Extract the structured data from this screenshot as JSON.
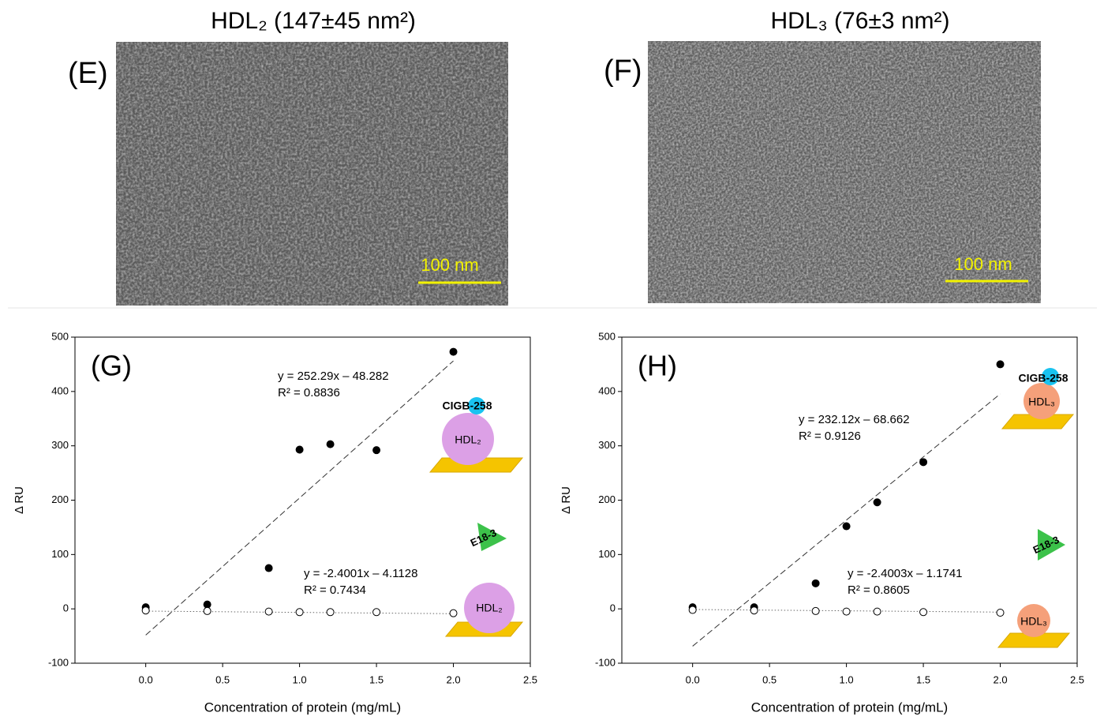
{
  "images": [
    {
      "panel": "(E)",
      "title": "HDL₂ (147±45 nm²)",
      "scale_bar": "100 nm"
    },
    {
      "panel": "(F)",
      "title": "HDL₃ (76±3 nm²)",
      "scale_bar": "100 nm"
    }
  ],
  "diagram_labels": {
    "peptide": "CIGB-258",
    "antibody": "E18-3",
    "particle_g": "HDL₂",
    "particle_h": "HDL₃"
  },
  "chart_data": [
    {
      "type": "scatter",
      "panel": "(G)",
      "xlabel": "Concentration of protein (mg/mL)",
      "ylabel": "Δ RU",
      "xlim": [
        -0.46,
        2.5
      ],
      "ylim": [
        -100,
        500
      ],
      "xticks": [
        {
          "value": 0,
          "label": "0.0"
        },
        0.5,
        {
          "value": 1,
          "label": "1.0"
        },
        1.5,
        {
          "value": 2,
          "label": "2.0"
        },
        2.5
      ],
      "yticks": [
        -100,
        0,
        100,
        200,
        300,
        400,
        500
      ],
      "x": [
        0,
        0.4,
        0.8,
        1.0,
        1.2,
        1.5,
        2.0
      ],
      "series": [
        {
          "color": "#000000",
          "marker": "filled",
          "values": [
            3,
            8,
            75,
            293,
            303,
            292,
            473
          ]
        },
        {
          "color": "#000000",
          "marker": "open",
          "values": [
            -3,
            -4,
            -5,
            -6,
            -6,
            -6,
            -8
          ]
        }
      ],
      "fits": [
        {
          "equation": "y = 252.29x – 48.282",
          "r_squared": "R² = 0.8836",
          "slope": 252.29,
          "intercept": -48.282,
          "x_range": [
            0,
            2
          ],
          "style": "dashed"
        },
        {
          "equation": "y = -2.4001x – 4.1128",
          "r_squared": "R² = 0.7434",
          "slope": -2.4001,
          "intercept": -4.1128,
          "x_range": [
            0,
            2
          ],
          "style": "dotted"
        }
      ]
    },
    {
      "type": "scatter",
      "panel": "(H)",
      "xlabel": "Concentration of protein (mg/mL)",
      "ylabel": "Δ RU",
      "xlim": [
        -0.46,
        2.5
      ],
      "ylim": [
        -100,
        500
      ],
      "xticks": [
        {
          "value": 0,
          "label": "0.0"
        },
        0.5,
        {
          "value": 1,
          "label": "1.0"
        },
        1.5,
        {
          "value": 2,
          "label": "2.0"
        },
        2.5
      ],
      "yticks": [
        -100,
        0,
        100,
        200,
        300,
        400,
        500
      ],
      "x": [
        0,
        0.4,
        0.8,
        1.0,
        1.2,
        1.5,
        2.0
      ],
      "series": [
        {
          "color": "#000000",
          "marker": "filled",
          "values": [
            3,
            3,
            47,
            152,
            196,
            270,
            450
          ]
        },
        {
          "color": "#000000",
          "marker": "open",
          "values": [
            -2,
            -3,
            -4,
            -5,
            -5,
            -6,
            -7
          ]
        }
      ],
      "fits": [
        {
          "equation": "y = 232.12x – 68.662",
          "r_squared": "R² = 0.9126",
          "slope": 232.12,
          "intercept": -68.662,
          "x_range": [
            0,
            2
          ],
          "style": "dashed"
        },
        {
          "equation": "y = -2.4003x – 1.1741",
          "r_squared": "R² = 0.8605",
          "slope": -2.4003,
          "intercept": -1.1741,
          "x_range": [
            0,
            2
          ],
          "style": "dotted"
        }
      ]
    }
  ]
}
